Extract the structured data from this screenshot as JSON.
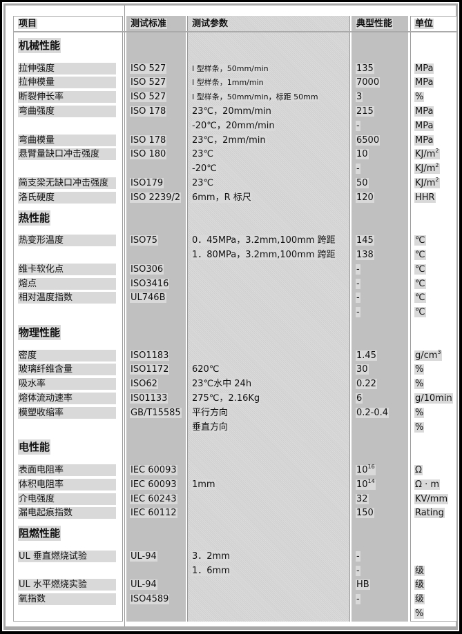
{
  "header": {
    "item": "项目",
    "standard": "测试标准",
    "params": "测试参数",
    "value": "典型性能",
    "unit": "单位"
  },
  "rows": [
    {
      "type": "section",
      "item": "机械性能"
    },
    {
      "type": "data",
      "item": "拉伸强度",
      "standard": "ISO 527",
      "params": "I 型样条，50mm/min",
      "value": "135",
      "unit": "MPa",
      "small": true
    },
    {
      "type": "data",
      "item": "拉伸模量",
      "standard": "ISO 527",
      "params": "I 型样条，1mm/min",
      "value": "7000",
      "unit": "MPa",
      "small": true
    },
    {
      "type": "data",
      "item": "断裂伸长率",
      "standard": "ISO 527",
      "params": "I 型样条，50mm/min，标距 50mm",
      "value": "3",
      "unit": "%",
      "small": true
    },
    {
      "type": "data",
      "item": "弯曲强度",
      "standard": "ISO 178",
      "params": "23℃，20mm/min",
      "value": "215",
      "unit": "MPa"
    },
    {
      "type": "data",
      "item": "",
      "standard": "",
      "params": "-20℃，20mm/min",
      "value": "-",
      "unit": "MPa"
    },
    {
      "type": "data",
      "item": "弯曲模量",
      "standard": "ISO 178",
      "params": "23℃，2mm/min",
      "value": "6500",
      "unit": "MPa"
    },
    {
      "type": "data",
      "item": "悬臂量缺口冲击强度",
      "standard": "ISO 180",
      "params": "23℃",
      "value": "10",
      "unit": "KJ/m",
      "unit_sup": "2"
    },
    {
      "type": "data",
      "item": "",
      "standard": "",
      "params": "-20℃",
      "value": "-",
      "unit": "KJ/m",
      "unit_sup": "2"
    },
    {
      "type": "data",
      "item": "简支梁无缺口冲击强度",
      "standard": "ISO179",
      "params": "23℃",
      "value": "50",
      "unit": "KJ/m",
      "unit_sup": "2"
    },
    {
      "type": "data",
      "item": "洛氏硬度",
      "standard": "ISO 2239/2",
      "params": "6mm，R 标尺",
      "value": "120",
      "unit": "HHR"
    },
    {
      "type": "section",
      "item": "热性能"
    },
    {
      "type": "data",
      "item": "热变形温度",
      "standard": "ISO75",
      "params": "0．45MPa，3.2mm,100mm 跨距",
      "value": "145",
      "unit": "℃"
    },
    {
      "type": "data",
      "item": "",
      "standard": "",
      "params": "1．80MPa，3.2mm,100mm 跨距",
      "value": "138",
      "unit": "℃"
    },
    {
      "type": "data",
      "item": "维卡软化点",
      "standard": "ISO306",
      "params": "",
      "value": "-",
      "unit": "℃"
    },
    {
      "type": "data",
      "item": "熔点",
      "standard": "ISO3416",
      "params": "",
      "value": "-",
      "unit": "℃"
    },
    {
      "type": "data",
      "item": "相对温度指数",
      "standard": "UL746B",
      "params": "",
      "value": "-",
      "unit": "℃"
    },
    {
      "type": "data",
      "item": "",
      "standard": "",
      "params": "",
      "value": "-",
      "unit": "℃"
    },
    {
      "type": "section",
      "item": "物理性能"
    },
    {
      "type": "data",
      "item": "密度",
      "standard": "ISO1183",
      "params": "",
      "value": "1.45",
      "unit": "g/cm",
      "unit_sup": "3"
    },
    {
      "type": "data",
      "item": "玻璃纤维含量",
      "standard": "ISO1172",
      "params": "620℃",
      "value": "30",
      "unit": "%"
    },
    {
      "type": "data",
      "item": "吸水率",
      "standard": "ISO62",
      "params": "23℃水中 24h",
      "value": "0.22",
      "unit": "%"
    },
    {
      "type": "data",
      "item": "熔体流动速率",
      "standard": "IS01133",
      "params": "275℃，2.16Kg",
      "value": "6",
      "unit": "g/10min"
    },
    {
      "type": "data",
      "item": "模塑收缩率",
      "standard": "GB/T15585",
      "params": "平行方向",
      "value": "0.2-0.4",
      "unit": "%"
    },
    {
      "type": "data",
      "item": "",
      "standard": "",
      "params": "垂直方向",
      "value": "",
      "unit": "%"
    },
    {
      "type": "section",
      "item": "电性能"
    },
    {
      "type": "data",
      "item": "表面电阻率",
      "standard": "IEC 60093",
      "params": "",
      "value": "10",
      "value_sup": "16",
      "unit": "Ω"
    },
    {
      "type": "data",
      "item": "体积电阻率",
      "standard": "IEC 60093",
      "params": "1mm",
      "value": "10",
      "value_sup": "14",
      "unit": "Ω · m"
    },
    {
      "type": "data",
      "item": "介电强度",
      "standard": "IEC 60243",
      "params": "",
      "value": "32",
      "unit": "KV/mm"
    },
    {
      "type": "data",
      "item": "漏电起痕指数",
      "standard": "IEC 60112",
      "params": "",
      "value": "150",
      "unit": "Rating"
    },
    {
      "type": "section",
      "item": "阻燃性能"
    },
    {
      "type": "data",
      "item": "UL 垂直燃烧试验",
      "standard": "UL-94",
      "params": "3．2mm",
      "value": "-",
      "unit": ""
    },
    {
      "type": "data",
      "item": "",
      "standard": "",
      "params": "1．6mm",
      "value": "-",
      "unit": "级"
    },
    {
      "type": "data",
      "item": "UL 水平燃烧实验",
      "standard": "UL-94",
      "params": "",
      "value": "HB",
      "unit": "级"
    },
    {
      "type": "data",
      "item": "氧指数",
      "standard": "ISO4589",
      "params": "",
      "value": "-",
      "unit": "级"
    },
    {
      "type": "data",
      "item": "",
      "standard": "",
      "params": "",
      "value": "",
      "unit": "%"
    }
  ]
}
